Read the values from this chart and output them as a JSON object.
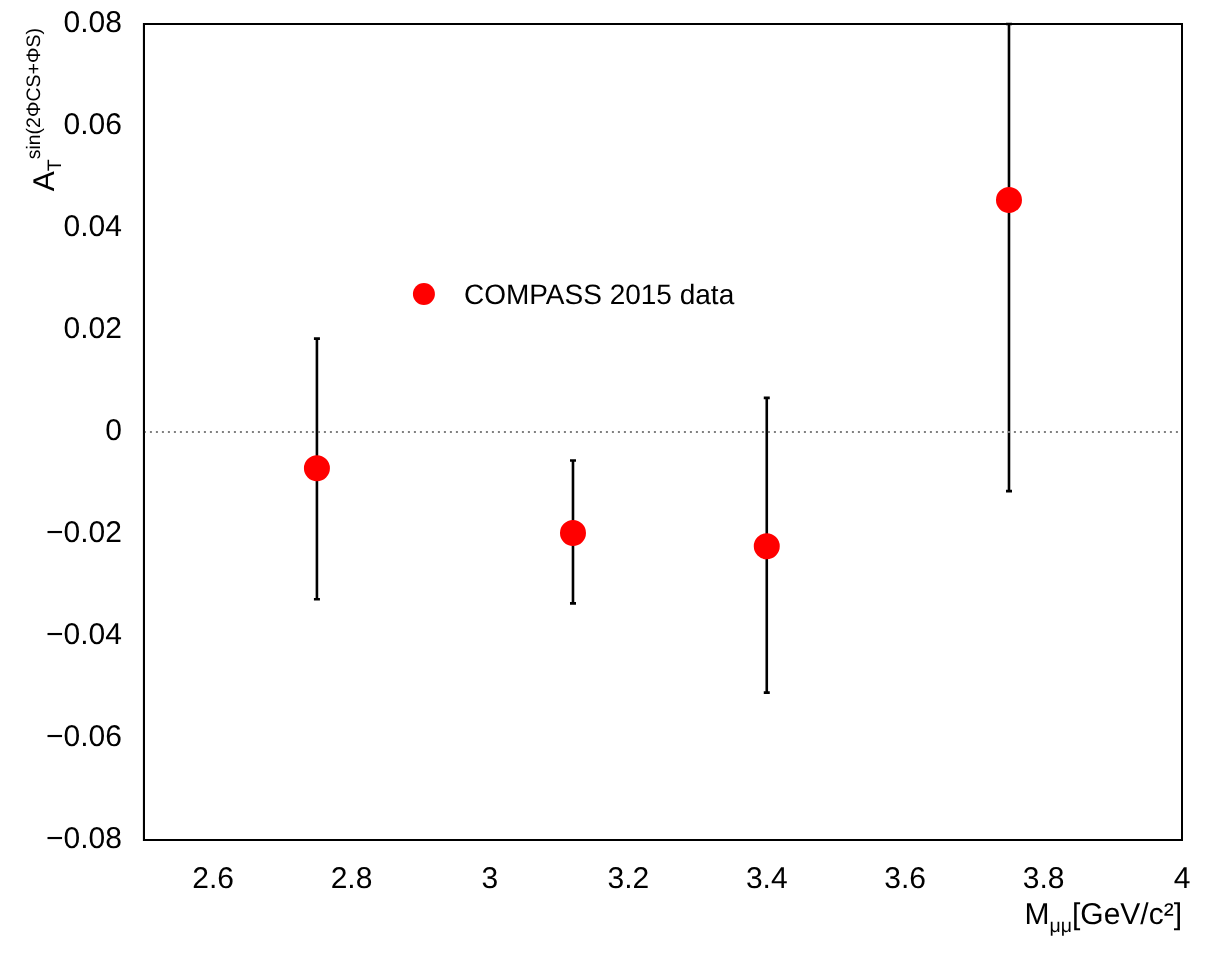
{
  "chart_data": {
    "type": "scatter",
    "xlabel": "M$_{μμ}$[GeV/c²]",
    "ylabel": "A$_{T}$$^{sin(2ΦCS+ΦS)}$",
    "series": [
      {
        "name": "COMPASS 2015 data",
        "color": "#ff0000",
        "x": [
          2.75,
          3.12,
          3.4,
          3.75
        ],
        "values": [
          -0.0071,
          -0.0198,
          -0.0224,
          0.0455
        ],
        "errors": [
          [
            -0.0328,
            0.0183
          ],
          [
            -0.0336,
            -0.0056
          ],
          [
            -0.0511,
            0.0067
          ],
          [
            -0.0116,
            0.08
          ]
        ]
      }
    ],
    "xlim": [
      2.5,
      4
    ],
    "xticks": [
      2.6,
      2.8,
      3,
      3.2,
      3.4,
      3.6,
      3.8,
      4
    ],
    "ylim": [
      -0.08,
      0.08
    ],
    "yticks": [
      -0.08,
      -0.06,
      -0.04,
      -0.02,
      0,
      0.02,
      0.04,
      0.06,
      0.08
    ],
    "ref_lines": [
      {
        "axis": "y",
        "value": 0,
        "color": "#808080",
        "line_style": "dotted"
      }
    ],
    "grid": false,
    "legend": "top left",
    "marker": "circle"
  }
}
